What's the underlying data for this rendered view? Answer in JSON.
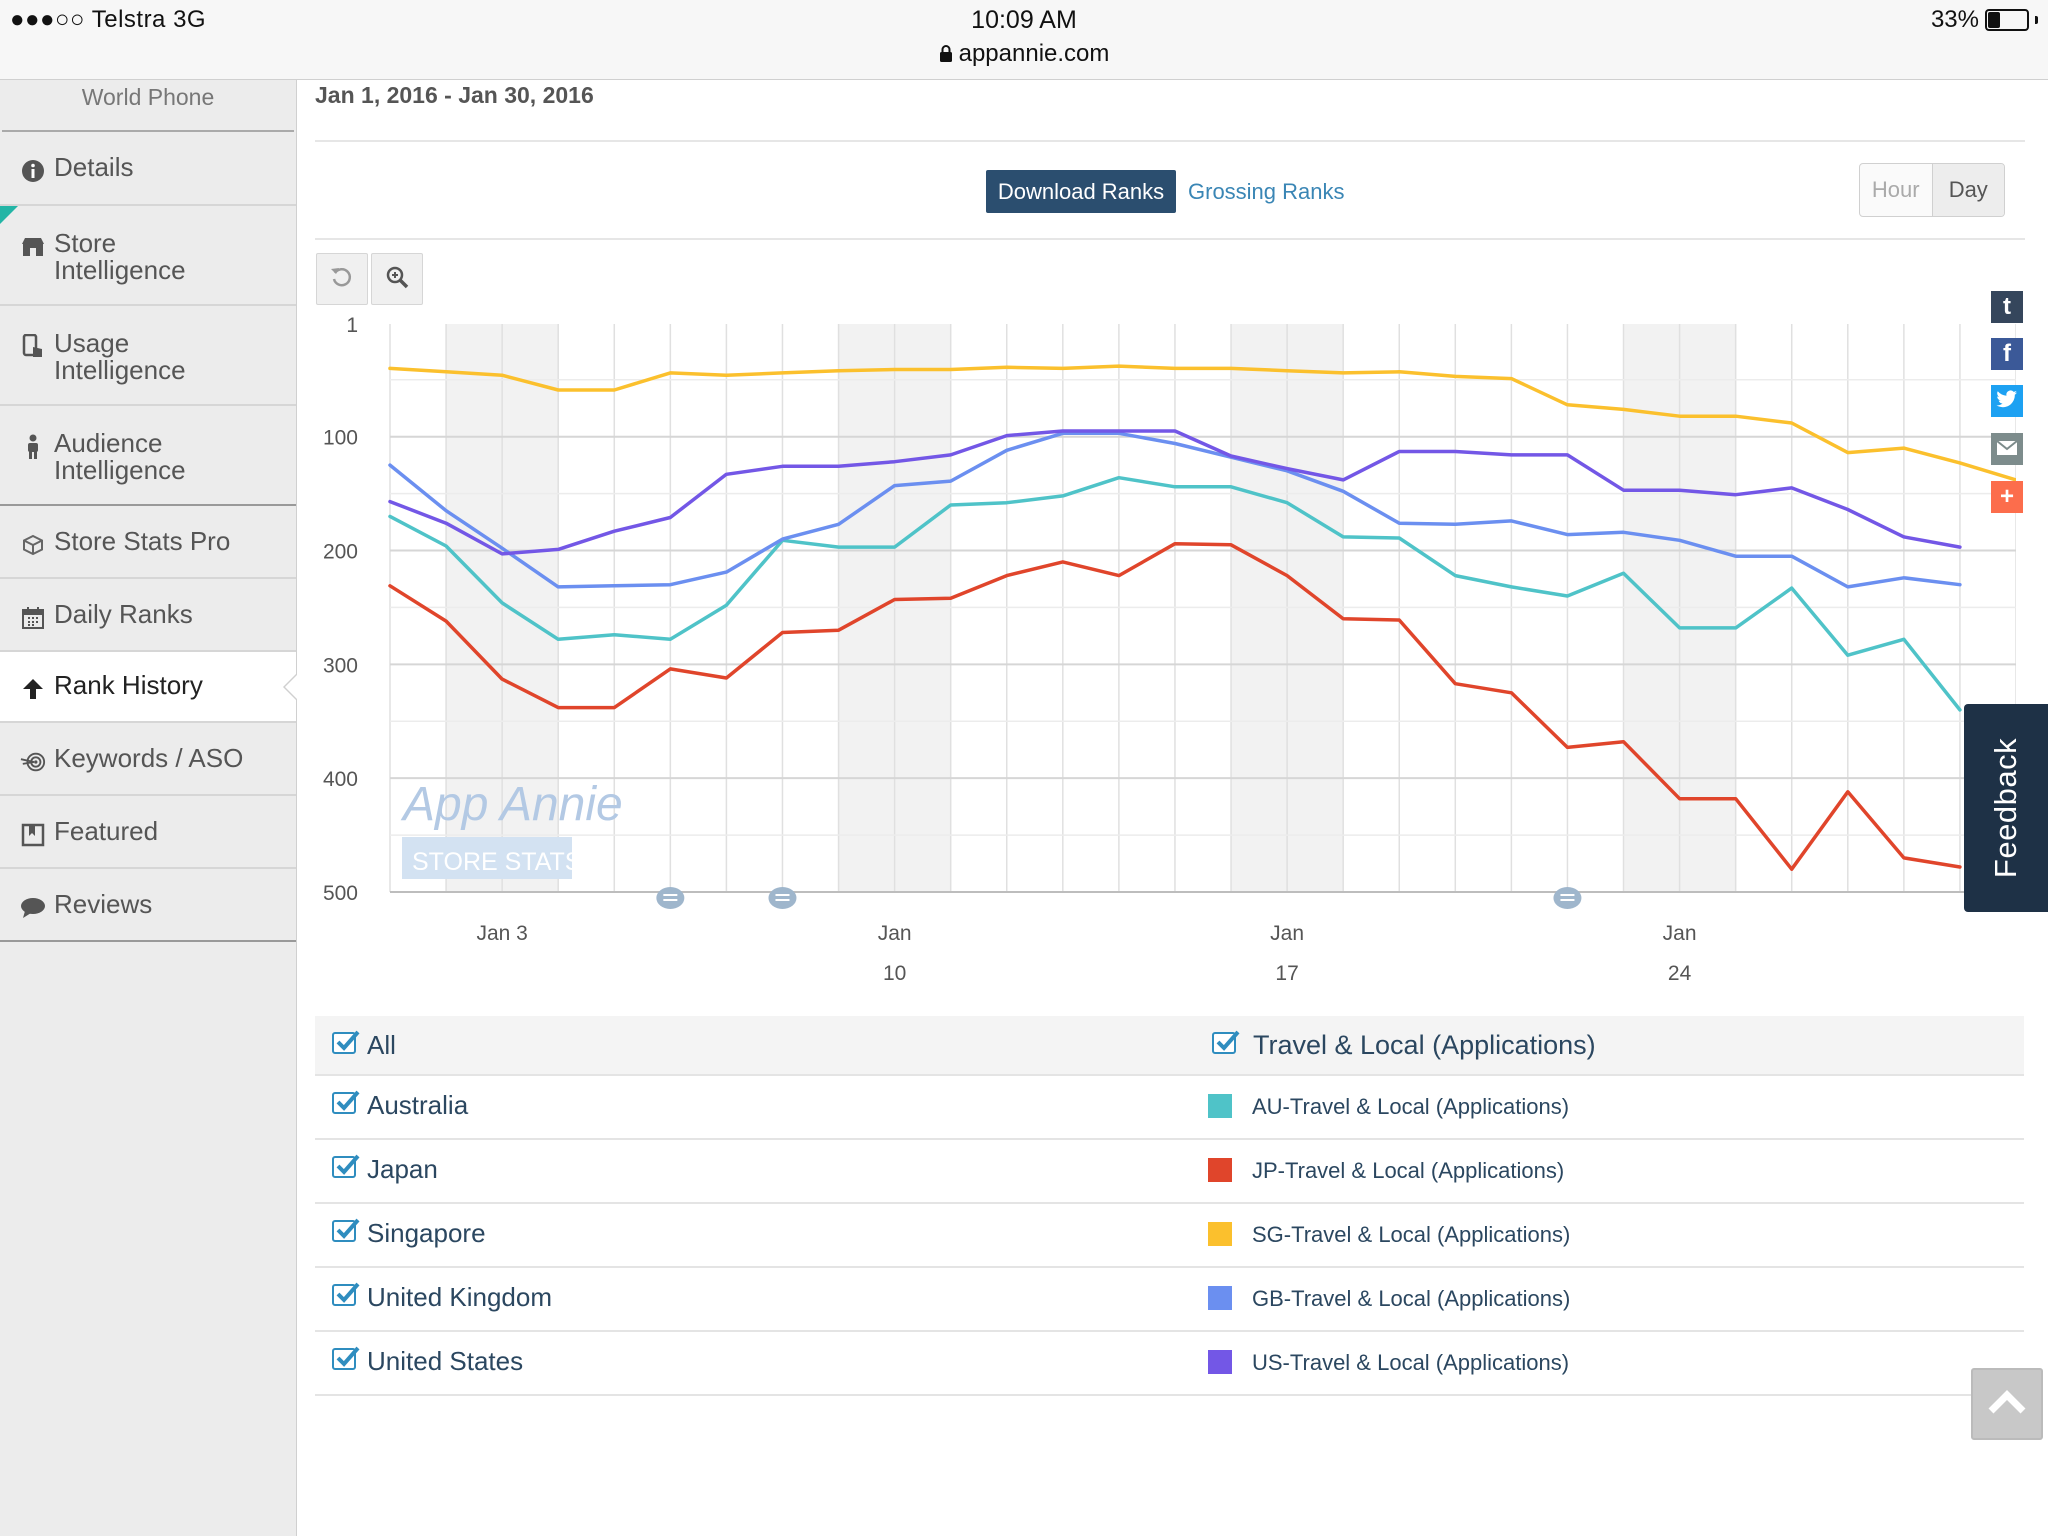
{
  "status_bar": {
    "carrier": "●●●○○ Telstra  3G",
    "time": "10:09 AM",
    "url": "appannie.com",
    "battery": "33%",
    "battery_level": 0.33
  },
  "sidebar": {
    "app_name": "World Phone",
    "items": [
      {
        "label": "Details",
        "icon": "info-icon"
      },
      {
        "label": "Store Intelligence",
        "icon": "store-icon"
      },
      {
        "label": "Usage Intelligence",
        "icon": "phone-touch-icon"
      },
      {
        "label": "Audience Intelligence",
        "icon": "person-icon"
      },
      {
        "label": "Store Stats Pro",
        "icon": "cube-icon"
      },
      {
        "label": "Daily Ranks",
        "icon": "calendar-icon"
      },
      {
        "label": "Rank History",
        "icon": "arrow-up-icon",
        "active": true
      },
      {
        "label": "Keywords / ASO",
        "icon": "target-icon"
      },
      {
        "label": "Featured",
        "icon": "bookmark-icon"
      },
      {
        "label": "Reviews",
        "icon": "speech-bubble-icon"
      }
    ]
  },
  "main": {
    "date_range": "Jan 1, 2016 - Jan 30, 2016",
    "tabs": {
      "download": "Download Ranks",
      "grossing": "Grossing Ranks"
    },
    "granularity": {
      "hour": "Hour",
      "day": "Day",
      "selected": "Day"
    }
  },
  "chart_data": {
    "type": "line",
    "y_axis_reversed": true,
    "yticks": [
      "1",
      "100",
      "200",
      "300",
      "400",
      "500"
    ],
    "ylim": [
      1,
      500
    ],
    "x": [
      1,
      2,
      3,
      4,
      5,
      6,
      7,
      8,
      9,
      10,
      11,
      12,
      13,
      14,
      15,
      16,
      17,
      18,
      19,
      20,
      21,
      22,
      23,
      24,
      25,
      26,
      27,
      28,
      29,
      30
    ],
    "xtick_labels": [
      {
        "x": 3,
        "lines": [
          "Jan 3"
        ]
      },
      {
        "x": 10,
        "lines": [
          "Jan",
          "10"
        ]
      },
      {
        "x": 17,
        "lines": [
          "Jan",
          "17"
        ]
      },
      {
        "x": 24,
        "lines": [
          "Jan",
          "24"
        ]
      }
    ],
    "weekend_bands": [
      [
        2,
        4
      ],
      [
        9,
        11
      ],
      [
        16,
        18
      ],
      [
        23,
        25
      ]
    ],
    "annotation_markers_x": [
      6,
      8,
      22
    ],
    "watermark": {
      "line1": "App Annie",
      "line2": "STORE STATS"
    },
    "series": [
      {
        "name": "AU-Travel & Local (Applications)",
        "color": "#4fc3c8",
        "values": [
          170,
          196,
          246,
          278,
          274,
          278,
          248,
          191,
          197,
          197,
          160,
          158,
          152,
          136,
          144,
          144,
          158,
          188,
          189,
          222,
          232,
          240,
          220,
          268,
          268,
          233,
          292,
          278,
          340,
          null
        ]
      },
      {
        "name": "JP-Travel & Local (Applications)",
        "color": "#e0452b",
        "values": [
          231,
          262,
          313,
          338,
          338,
          304,
          312,
          272,
          270,
          243,
          242,
          222,
          210,
          222,
          194,
          195,
          222,
          260,
          261,
          317,
          325,
          373,
          368,
          418,
          418,
          480,
          412,
          470,
          478,
          null
        ]
      },
      {
        "name": "SG-Travel & Local (Applications)",
        "color": "#fbc02d",
        "values": [
          40,
          43,
          46,
          59,
          59,
          44,
          46,
          44,
          42,
          41,
          41,
          39,
          40,
          38,
          40,
          40,
          42,
          44,
          43,
          47,
          49,
          72,
          76,
          82,
          82,
          88,
          114,
          110,
          123,
          138
        ]
      },
      {
        "name": "GB-Travel & Local (Applications)",
        "color": "#6b8ff0",
        "values": [
          125,
          165,
          198,
          232,
          231,
          230,
          219,
          190,
          177,
          143,
          139,
          112,
          97,
          97,
          106,
          118,
          130,
          148,
          176,
          177,
          174,
          186,
          184,
          191,
          205,
          205,
          232,
          224,
          230,
          null
        ]
      },
      {
        "name": "US-Travel & Local (Applications)",
        "color": "#7357e6",
        "values": [
          157,
          176,
          203,
          199,
          183,
          171,
          133,
          126,
          126,
          122,
          116,
          99,
          95,
          95,
          95,
          117,
          128,
          138,
          113,
          113,
          116,
          116,
          147,
          147,
          151,
          145,
          164,
          188,
          197,
          null
        ]
      }
    ]
  },
  "legend": {
    "all_label": "All",
    "category_label": "Travel & Local (Applications)",
    "rows": [
      {
        "country": "Australia",
        "series": "AU-Travel & Local (Applications)",
        "color": "#4fc3c8"
      },
      {
        "country": "Japan",
        "series": "JP-Travel & Local (Applications)",
        "color": "#e0452b"
      },
      {
        "country": "Singapore",
        "series": "SG-Travel & Local (Applications)",
        "color": "#fbc02d"
      },
      {
        "country": "United Kingdom",
        "series": "GB-Travel & Local (Applications)",
        "color": "#6b8ff0"
      },
      {
        "country": "United States",
        "series": "US-Travel & Local (Applications)",
        "color": "#7357e6"
      }
    ]
  },
  "share": [
    {
      "icon": "tumblr-icon",
      "glyph": "t",
      "color": "#35465c"
    },
    {
      "icon": "facebook-icon",
      "glyph": "f",
      "color": "#3b5998"
    },
    {
      "icon": "twitter-icon",
      "glyph": "",
      "color": "#1da1f2"
    },
    {
      "icon": "email-icon",
      "glyph": "",
      "color": "#7d8c8c"
    },
    {
      "icon": "add-icon",
      "glyph": "+",
      "color": "#fc6d4c"
    }
  ],
  "feedback_label": "Feedback"
}
